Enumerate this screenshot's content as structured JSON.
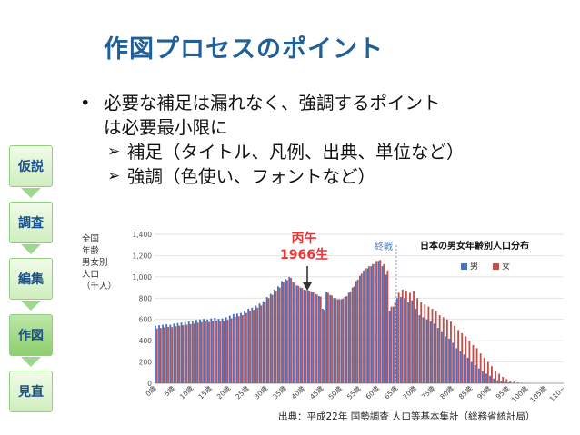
{
  "slide": {
    "title": "作図プロセスのポイント",
    "bullet_main_line1": "必要な補足は漏れなく、強調するポイント",
    "bullet_main_line2": "は必要最小限に",
    "bullet_dot": "•",
    "arrow_glyph": "➢",
    "sub1": "補足（タイトル、凡例、出典、単位など）",
    "sub2": "強調（色使い、フォントなど）",
    "steps": [
      "仮説",
      "調査",
      "編集",
      "作図",
      "見直"
    ],
    "active_step": "作図",
    "step_color": "#cfeebf",
    "title_color": "#1f5f9a",
    "source": "出典：平成22年 国勢調査 人口等基本集計（総務省統計局）"
  },
  "chart": {
    "ylabel_lines": [
      "全国",
      "年齢",
      "男女別",
      "人口",
      "（千人）"
    ],
    "legend_title": "日本の男女年齢別人口分布",
    "legend_male": "男",
    "legend_female": "女",
    "annotation_line1": "丙午",
    "annotation_line2": "1966生",
    "endwar_label": "終戦",
    "male_color": "#4472c4",
    "female_color": "#c0504d"
  },
  "chart_data": {
    "type": "bar",
    "title": "日本の男女年齢別人口分布",
    "ylabel": "全国年齢男女別人口（千人）",
    "ylim": [
      0,
      1400
    ],
    "yticks": [
      "0",
      "200",
      "400",
      "600",
      "800",
      "1,000",
      "1,200",
      "1,400"
    ],
    "xtick_labels": [
      "0歳",
      "5歳",
      "10歳",
      "15歳",
      "20歳",
      "25歳",
      "30歳",
      "35歳",
      "40歳",
      "45歳",
      "50歳",
      "55歳",
      "60歳",
      "65歳",
      "70歳",
      "75歳",
      "80歳",
      "85歳",
      "90歳",
      "95歳",
      "100歳",
      "105歳",
      "110~"
    ],
    "series": [
      {
        "name": "男",
        "values": [
          540,
          545,
          550,
          555,
          550,
          560,
          565,
          570,
          575,
          580,
          585,
          595,
          600,
          605,
          600,
          610,
          615,
          605,
          610,
          620,
          635,
          650,
          655,
          660,
          680,
          700,
          710,
          730,
          750,
          770,
          810,
          840,
          880,
          910,
          960,
          980,
          1000,
          950,
          920,
          900,
          880,
          875,
          860,
          840,
          820,
          700,
          860,
          830,
          800,
          790,
          790,
          810,
          850,
          900,
          960,
          1010,
          1060,
          1080,
          1100,
          1120,
          1150,
          1100,
          1020,
          680,
          720,
          800,
          810,
          800,
          760,
          780,
          700,
          640,
          620,
          600,
          580,
          560,
          520,
          480,
          440,
          420,
          380,
          330,
          300,
          270,
          240,
          200,
          170,
          140,
          110,
          90,
          70,
          45,
          30,
          20,
          12,
          8,
          4,
          2,
          1,
          0,
          0,
          0,
          0,
          0,
          0,
          0,
          0,
          0,
          0,
          0
        ]
      },
      {
        "name": "女",
        "values": [
          515,
          520,
          525,
          530,
          528,
          535,
          540,
          545,
          550,
          555,
          560,
          570,
          575,
          580,
          575,
          585,
          590,
          580,
          585,
          595,
          610,
          625,
          630,
          640,
          660,
          680,
          690,
          710,
          730,
          760,
          800,
          830,
          870,
          900,
          950,
          970,
          990,
          945,
          915,
          895,
          875,
          870,
          855,
          835,
          815,
          690,
          850,
          825,
          800,
          790,
          795,
          820,
          860,
          910,
          975,
          1030,
          1080,
          1100,
          1120,
          1150,
          1160,
          1120,
          1060,
          720,
          760,
          850,
          880,
          870,
          850,
          870,
          800,
          760,
          740,
          720,
          700,
          680,
          640,
          620,
          600,
          580,
          540,
          500,
          470,
          440,
          400,
          360,
          330,
          280,
          240,
          200,
          160,
          120,
          90,
          60,
          40,
          25,
          15,
          8,
          4,
          2,
          1,
          0,
          0,
          0,
          0,
          0,
          0,
          0,
          0,
          0,
          0,
          0
        ]
      }
    ],
    "annotations": [
      "丙午 1966生",
      "終戦"
    ],
    "source": "出典：平成22年 国勢調査 人口等基本集計（総務省統計局）"
  }
}
